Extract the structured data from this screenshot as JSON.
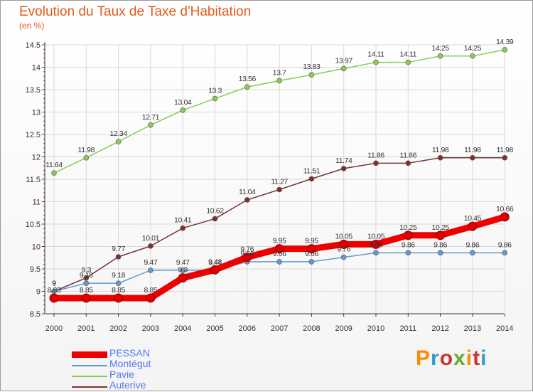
{
  "header": {
    "title": "Evolution du Taux de Taxe d'Habitation",
    "subtitle": "(en %)"
  },
  "brand": {
    "text": "Proxiti",
    "colors": [
      "#ff8c00",
      "#3399cc",
      "#cc3333",
      "#66aa33",
      "#ff8c00",
      "#cc3333",
      "#3399cc"
    ]
  },
  "chart_data": {
    "type": "line",
    "title": "Evolution du Taux de Taxe d'Habitation",
    "ylabel": "(en %)",
    "xlabel": "",
    "x": [
      "2000",
      "2001",
      "2002",
      "2003",
      "2004",
      "2005",
      "2006",
      "2007",
      "2008",
      "2009",
      "2010",
      "2011",
      "2012",
      "2013",
      "2014"
    ],
    "ylim": [
      8.5,
      14.5
    ],
    "yticks": [
      "8.5",
      "9",
      "9.5",
      "10",
      "10.5",
      "11",
      "11.5",
      "12",
      "12.5",
      "13",
      "13.5",
      "14",
      "14.5"
    ],
    "grid": true,
    "legend_position": "bottom-left",
    "series": [
      {
        "name": "PESSAN",
        "color": "#ee0000",
        "values": [
          8.85,
          8.85,
          8.85,
          8.85,
          9.3,
          9.48,
          9.76,
          9.95,
          9.95,
          10.05,
          10.05,
          10.25,
          10.25,
          10.45,
          10.66
        ],
        "labels": [
          "8.85",
          "8.85",
          "8.85",
          "8.85",
          "9.3",
          "9.48",
          "9.76",
          "9.95",
          "9.95",
          "10.05",
          "10.05",
          "10.25",
          "10.25",
          "10.45",
          "10.66"
        ]
      },
      {
        "name": "Montégut",
        "color": "#6699cc",
        "values": [
          9.0,
          9.18,
          9.18,
          9.47,
          9.47,
          9.47,
          9.66,
          9.66,
          9.66,
          9.76,
          9.86,
          9.86,
          9.86,
          9.86,
          9.86
        ],
        "labels": [
          "9",
          "9.18",
          "9.18",
          "9.47",
          "9.47",
          "9.47",
          "9.66",
          "9.66",
          "9.66",
          "9.76",
          "9.86",
          "9.86",
          "9.86",
          "9.86",
          "9.86"
        ]
      },
      {
        "name": "Pavie",
        "color": "#88cc55",
        "values": [
          11.64,
          11.98,
          12.34,
          12.71,
          13.04,
          13.3,
          13.56,
          13.7,
          13.83,
          13.97,
          14.11,
          14.11,
          14.25,
          14.25,
          14.39
        ],
        "labels": [
          "11.64",
          "11.98",
          "12.34",
          "12.71",
          "13.04",
          "13.3",
          "13.56",
          "13.7",
          "13.83",
          "13.97",
          "14.11",
          "14.11",
          "14.25",
          "14.25",
          "14.39"
        ]
      },
      {
        "name": "Auterive",
        "color": "#773333",
        "values": [
          9.0,
          9.3,
          9.77,
          10.01,
          10.41,
          10.62,
          11.04,
          11.27,
          11.51,
          11.74,
          11.86,
          11.86,
          11.98,
          11.98,
          11.98
        ],
        "labels": [
          "9",
          "9.3",
          "9.77",
          "10.01",
          "10.41",
          "10.62",
          "11.04",
          "11.27",
          "11.51",
          "11.74",
          "11.86",
          "11.86",
          "11.98",
          "11.98",
          "11.98"
        ]
      }
    ]
  }
}
